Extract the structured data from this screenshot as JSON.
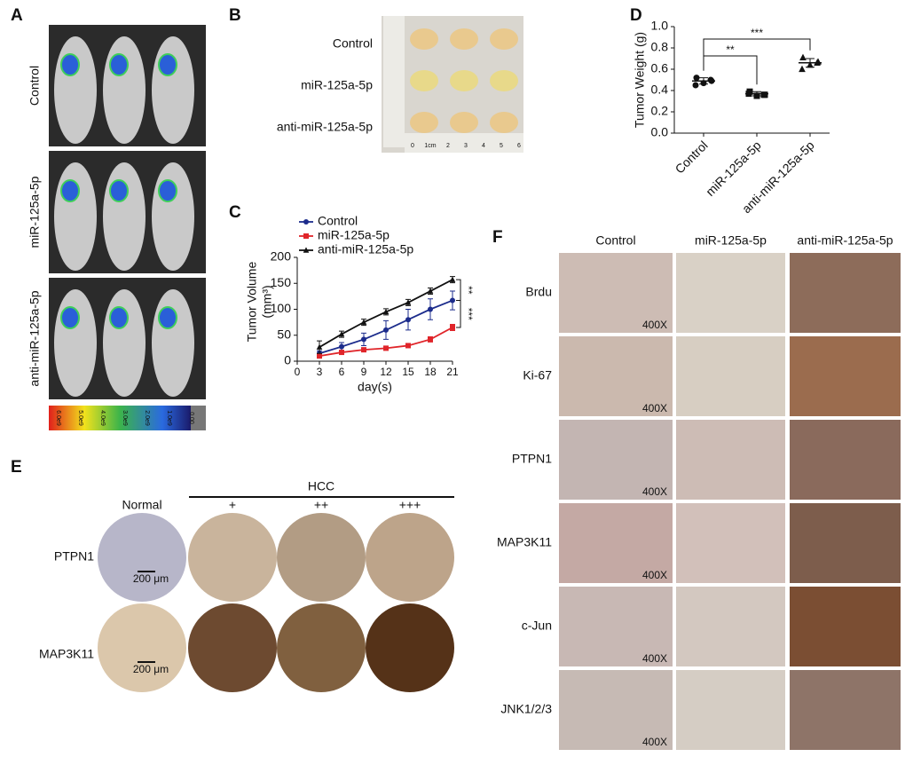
{
  "panel_labels": [
    "A",
    "B",
    "C",
    "D",
    "E",
    "F"
  ],
  "panel_a": {
    "groups": [
      "Control",
      "miR-125a-5p",
      "anti-miR-125a-5p"
    ],
    "colorbar_labels": [
      "6.0e9",
      "5.0e9",
      "4.0e9",
      "3.0e9",
      "2.0e9",
      "1.0e9",
      "0.00"
    ]
  },
  "panel_b": {
    "groups": [
      "Control",
      "miR-125a-5p",
      "anti-miR-125a-5p"
    ],
    "ruler_labels": [
      "0",
      "1cm",
      "2",
      "3",
      "4",
      "5",
      "6"
    ]
  },
  "panel_e": {
    "hcc_label": "HCC",
    "columns": [
      "Normal",
      "+",
      "++",
      "+++"
    ],
    "rows": [
      "PTPN1",
      "MAP3K11"
    ],
    "scale_bar": "200 μm"
  },
  "panel_f": {
    "columns": [
      "Control",
      "miR-125a-5p",
      "anti-miR-125a-5p"
    ],
    "rows": [
      "Brdu",
      "Ki-67",
      "PTPN1",
      "MAP3K11",
      "c-Jun",
      "JNK1/2/3"
    ],
    "magnification": "400X"
  },
  "chart_data": [
    {
      "type": "line",
      "x_label": "day(s)",
      "y_label": "Tumor Volume",
      "y_unit_label": "(mm³)",
      "x": [
        3,
        6,
        9,
        12,
        15,
        18,
        21
      ],
      "xlim": [
        0,
        21
      ],
      "xticks": [
        0,
        3,
        6,
        9,
        12,
        15,
        18,
        21
      ],
      "ylim": [
        0,
        200
      ],
      "yticks": [
        0,
        50,
        100,
        150,
        200
      ],
      "legend": "top-left",
      "series": [
        {
          "name": "Control",
          "color": "#1c2c8c",
          "marker": "circle",
          "values": [
            15,
            28,
            42,
            60,
            80,
            100,
            117
          ],
          "errors": [
            5,
            8,
            12,
            18,
            20,
            20,
            18
          ]
        },
        {
          "name": "miR-125a-5p",
          "color": "#e0252a",
          "marker": "square",
          "values": [
            10,
            17,
            22,
            25,
            30,
            42,
            65
          ],
          "errors": [
            3,
            3,
            3,
            3,
            3,
            5,
            6
          ]
        },
        {
          "name": "anti-miR-125a-5p",
          "color": "#111111",
          "marker": "triangle",
          "values": [
            27,
            52,
            75,
            95,
            113,
            135,
            157
          ],
          "errors": [
            12,
            6,
            6,
            6,
            6,
            6,
            6
          ]
        }
      ],
      "annotations": [
        "**",
        "***"
      ]
    },
    {
      "type": "scatter",
      "y_label": "Tumor Weight (g)",
      "categories": [
        "Control",
        "miR-125a-5p",
        "anti-miR-125a-5p"
      ],
      "color": "#111111",
      "markers": [
        "circle",
        "square",
        "triangle"
      ],
      "points": [
        [
          0.52,
          0.5,
          0.47,
          0.45,
          0.49
        ],
        [
          0.39,
          0.36,
          0.35,
          0.37,
          0.36
        ],
        [
          0.71,
          0.66,
          0.64,
          0.6,
          0.67
        ]
      ],
      "means": [
        0.49,
        0.37,
        0.66
      ],
      "errors": [
        0.03,
        0.02,
        0.04
      ],
      "ylim": [
        0,
        1
      ],
      "yticks": [
        {
          "value": 0,
          "label": "0.0"
        },
        0.2,
        0.4,
        0.6,
        0.8,
        {
          "value": 1,
          "label": "1.0"
        }
      ],
      "annotations": [
        "**",
        "***"
      ]
    }
  ]
}
